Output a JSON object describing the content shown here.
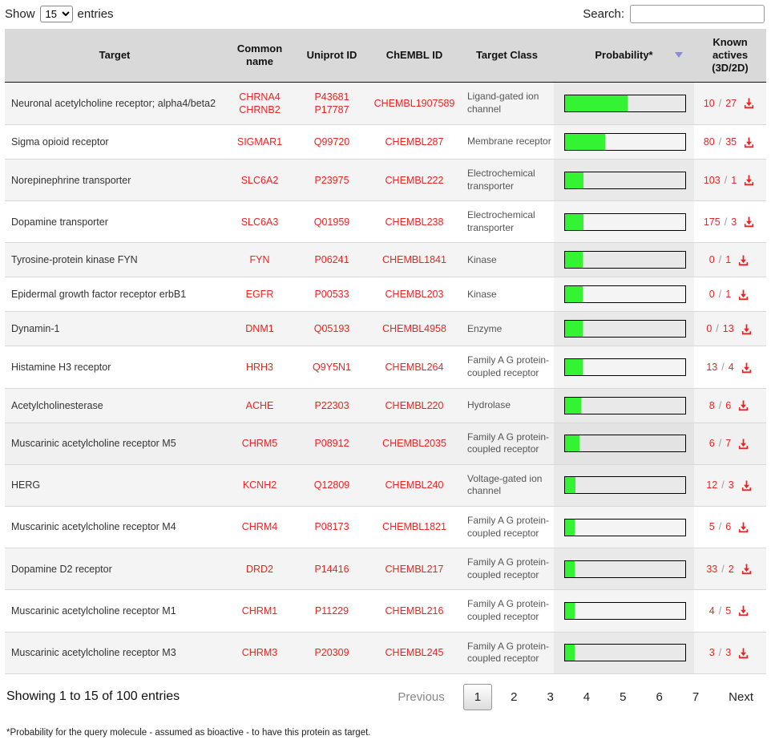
{
  "controls": {
    "show_label": "Show",
    "entries_label": "entries",
    "page_length_options": [
      "15"
    ],
    "page_length_selected": "15",
    "search_label": "Search:",
    "search_value": ""
  },
  "table": {
    "columns": [
      "Target",
      "Common name",
      "Uniprot ID",
      "ChEMBL ID",
      "Target Class",
      "Probability*",
      "Known actives (3D/2D)"
    ],
    "sort": {
      "column": "Probability*",
      "direction": "descending"
    },
    "hover_row": 10,
    "rows": [
      {
        "target": "Neuronal acetylcholine receptor; alpha4/beta2",
        "common_name": [
          "CHRNA4",
          "CHRNB2"
        ],
        "uniprot": [
          "P43681",
          "P17787"
        ],
        "chembl": "CHEMBL1907589",
        "target_class": "Ligand-gated ion channel",
        "probability_pct": 52,
        "actives_3d": "10",
        "actives_2d": "27"
      },
      {
        "target": "Sigma opioid receptor",
        "common_name": [
          "SIGMAR1"
        ],
        "uniprot": [
          "Q99720"
        ],
        "chembl": "CHEMBL287",
        "target_class": "Membrane receptor",
        "probability_pct": 33,
        "actives_3d": "80",
        "actives_2d": "35"
      },
      {
        "target": "Norepinephrine transporter",
        "common_name": [
          "SLC6A2"
        ],
        "uniprot": [
          "P23975"
        ],
        "chembl": "CHEMBL222",
        "target_class": "Electrochemical transporter",
        "probability_pct": 15,
        "actives_3d": "103",
        "actives_2d": "1"
      },
      {
        "target": "Dopamine transporter",
        "common_name": [
          "SLC6A3"
        ],
        "uniprot": [
          "Q01959"
        ],
        "chembl": "CHEMBL238",
        "target_class": "Electrochemical transporter",
        "probability_pct": 15,
        "actives_3d": "175",
        "actives_2d": "3"
      },
      {
        "target": "Tyrosine-protein kinase FYN",
        "common_name": [
          "FYN"
        ],
        "uniprot": [
          "P06241"
        ],
        "chembl": "CHEMBL1841",
        "target_class": "Kinase",
        "probability_pct": 14.8,
        "actives_3d": "0",
        "actives_2d": "1"
      },
      {
        "target": "Epidermal growth factor receptor erbB1",
        "common_name": [
          "EGFR"
        ],
        "uniprot": [
          "P00533"
        ],
        "chembl": "CHEMBL203",
        "target_class": "Kinase",
        "probability_pct": 14.8,
        "actives_3d": "0",
        "actives_2d": "1"
      },
      {
        "target": "Dynamin-1",
        "common_name": [
          "DNM1"
        ],
        "uniprot": [
          "Q05193"
        ],
        "chembl": "CHEMBL4958",
        "target_class": "Enzyme",
        "probability_pct": 14.8,
        "actives_3d": "0",
        "actives_2d": "13"
      },
      {
        "target": "Histamine H3 receptor",
        "common_name": [
          "HRH3"
        ],
        "uniprot": [
          "Q9Y5N1"
        ],
        "chembl": "CHEMBL264",
        "target_class": "Family A G protein-coupled receptor",
        "probability_pct": 14.8,
        "actives_3d": "13",
        "actives_2d": "4"
      },
      {
        "target": "Acetylcholinesterase",
        "common_name": [
          "ACHE"
        ],
        "uniprot": [
          "P22303"
        ],
        "chembl": "CHEMBL220",
        "target_class": "Hydrolase",
        "probability_pct": 13.3,
        "actives_3d": "8",
        "actives_2d": "6"
      },
      {
        "target": "Muscarinic acetylcholine receptor M5",
        "common_name": [
          "CHRM5"
        ],
        "uniprot": [
          "P08912"
        ],
        "chembl": "CHEMBL2035",
        "target_class": "Family A G protein-coupled receptor",
        "probability_pct": 12,
        "actives_3d": "6",
        "actives_2d": "7"
      },
      {
        "target": "HERG",
        "common_name": [
          "KCNH2"
        ],
        "uniprot": [
          "Q12809"
        ],
        "chembl": "CHEMBL240",
        "target_class": "Voltage-gated ion channel",
        "probability_pct": 8.9,
        "actives_3d": "12",
        "actives_2d": "3"
      },
      {
        "target": "Muscarinic acetylcholine receptor M4",
        "common_name": [
          "CHRM4"
        ],
        "uniprot": [
          "P08173"
        ],
        "chembl": "CHEMBL1821",
        "target_class": "Family A G protein-coupled receptor",
        "probability_pct": 7.8,
        "actives_3d": "5",
        "actives_2d": "6"
      },
      {
        "target": "Dopamine D2 receptor",
        "common_name": [
          "DRD2"
        ],
        "uniprot": [
          "P14416"
        ],
        "chembl": "CHEMBL217",
        "target_class": "Family A G protein-coupled receptor",
        "probability_pct": 7.8,
        "actives_3d": "33",
        "actives_2d": "2"
      },
      {
        "target": "Muscarinic acetylcholine receptor M1",
        "common_name": [
          "CHRM1"
        ],
        "uniprot": [
          "P11229"
        ],
        "chembl": "CHEMBL216",
        "target_class": "Family A G protein-coupled receptor",
        "probability_pct": 7.8,
        "actives_3d": "4",
        "actives_2d": "5"
      },
      {
        "target": "Muscarinic acetylcholine receptor M3",
        "common_name": [
          "CHRM3"
        ],
        "uniprot": [
          "P20309"
        ],
        "chembl": "CHEMBL245",
        "target_class": "Family A G protein-coupled receptor",
        "probability_pct": 7.8,
        "actives_3d": "3",
        "actives_2d": "3"
      }
    ]
  },
  "footer": {
    "info": "Showing 1 to 15 of 100 entries",
    "pagination": {
      "previous_label": "Previous",
      "pages": [
        "1",
        "2",
        "3",
        "4",
        "5",
        "6",
        "7"
      ],
      "active_page": "1",
      "next_label": "Next"
    },
    "note": "*Probability for the query molecule - assumed as bioactive - to have this protein as target."
  },
  "colors": {
    "link_red": "#ee2222",
    "probability_green": "#33f333",
    "header_bg": "#d9d9d9",
    "sort_arrow": "#8a8ad6"
  },
  "icons": {
    "download": "download-icon",
    "sort_descending": "sort-desc-icon"
  }
}
